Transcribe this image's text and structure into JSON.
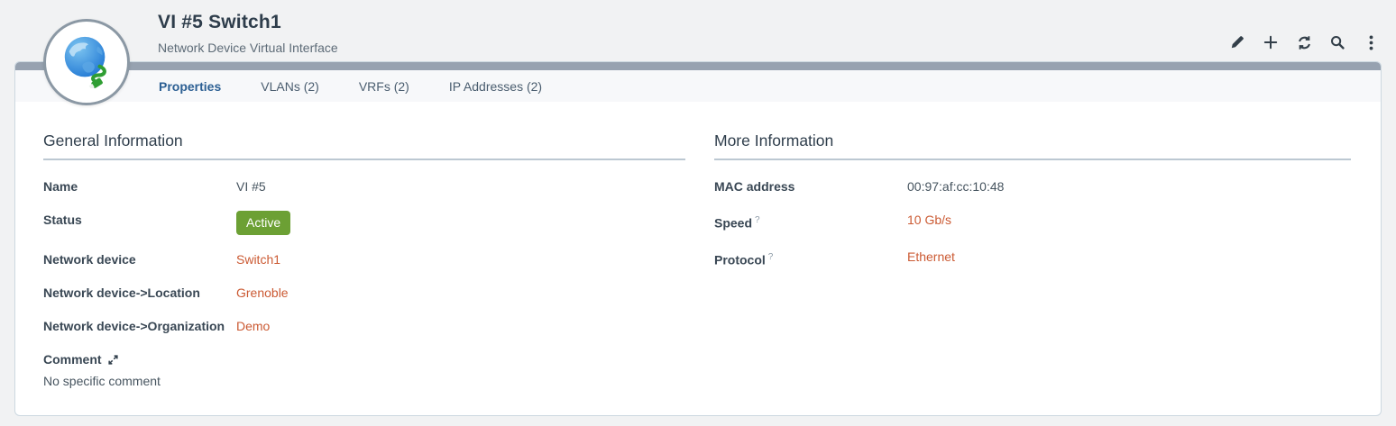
{
  "header": {
    "title": "VI #5 Switch1",
    "subtitle": "Network Device Virtual Interface",
    "avatar_icon": "globe-network-icon",
    "toolbar": [
      {
        "name": "edit",
        "icon": "pencil-icon"
      },
      {
        "name": "new",
        "icon": "plus-icon"
      },
      {
        "name": "refresh",
        "icon": "refresh-icon"
      },
      {
        "name": "search",
        "icon": "search-icon"
      },
      {
        "name": "more",
        "icon": "kebab-menu-icon"
      }
    ]
  },
  "tabs": [
    {
      "label": "Properties",
      "active": true
    },
    {
      "label": "VLANs (2)",
      "active": false
    },
    {
      "label": "VRFs (2)",
      "active": false
    },
    {
      "label": "IP Addresses (2)",
      "active": false
    }
  ],
  "sections": [
    {
      "title": "General Information",
      "fields": [
        {
          "label": "Name",
          "value": "VI #5",
          "type": "text"
        },
        {
          "label": "Status",
          "value": "Active",
          "type": "badge"
        },
        {
          "label": "Network device",
          "value": "Switch1",
          "type": "link"
        },
        {
          "label": "Network device->Location",
          "value": "Grenoble",
          "type": "link"
        },
        {
          "label": "Network device->Organization",
          "value": "Demo",
          "type": "link"
        },
        {
          "label": "Comment",
          "icon": "expand-icon",
          "value": "No specific comment",
          "type": "comment"
        }
      ]
    },
    {
      "title": "More Information",
      "fields": [
        {
          "label": "MAC address",
          "value": "00:97:af:cc:10:48",
          "type": "text"
        },
        {
          "label": "Speed",
          "help": "?",
          "value": "10 Gb/s",
          "type": "link"
        },
        {
          "label": "Protocol",
          "help": "?",
          "value": "Ethernet",
          "type": "link"
        }
      ]
    }
  ],
  "colors": {
    "page_bg": "#f1f2f3",
    "accent_bar": "#97a2b0",
    "tab_active": "#2c5f93",
    "link": "#cb5a33",
    "status_active_bg": "#6ca034"
  }
}
